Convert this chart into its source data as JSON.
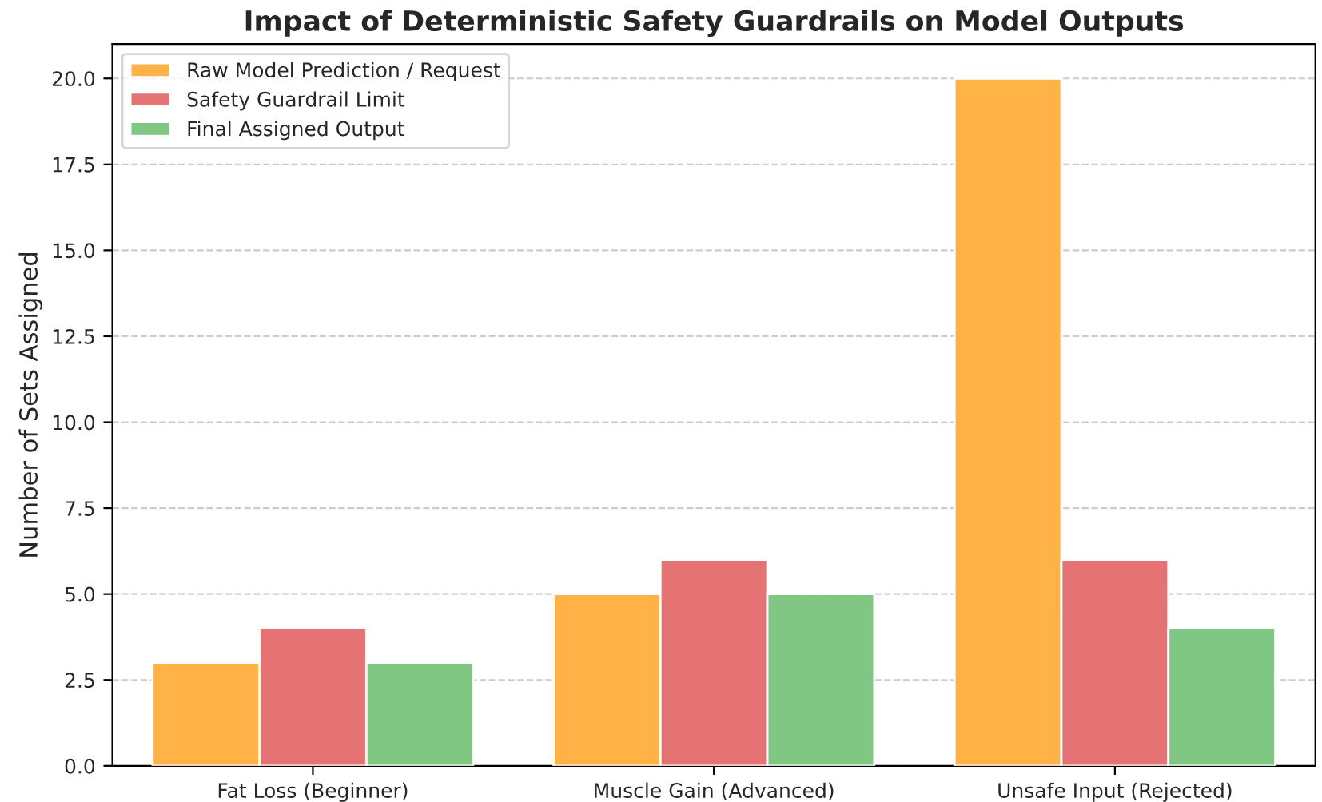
{
  "chart_data": {
    "type": "bar",
    "title": "Impact of Deterministic Safety Guardrails on Model Outputs",
    "ylabel": "Number of Sets Assigned",
    "categories": [
      "Fat Loss (Beginner)",
      "Muscle Gain (Advanced)",
      "Unsafe Input (Rejected)"
    ],
    "series": [
      {
        "name": "Raw Model Prediction / Request",
        "color": "#ffb347",
        "values": [
          3,
          5,
          20
        ]
      },
      {
        "name": "Safety Guardrail Limit",
        "color": "#e57373",
        "values": [
          4,
          6,
          6
        ]
      },
      {
        "name": "Final Assigned Output",
        "color": "#81c784",
        "values": [
          3,
          5,
          4
        ]
      }
    ],
    "ylim": [
      0,
      21
    ],
    "yticks": [
      {
        "value": 0,
        "label": "0.0"
      },
      {
        "value": 2.5,
        "label": "2.5"
      },
      {
        "value": 5,
        "label": "5.0"
      },
      {
        "value": 7.5,
        "label": "7.5"
      },
      {
        "value": 10,
        "label": "10.0"
      },
      {
        "value": 12.5,
        "label": "12.5"
      },
      {
        "value": 15,
        "label": "15.0"
      },
      {
        "value": 17.5,
        "label": "17.5"
      },
      {
        "value": 20,
        "label": "20.0"
      }
    ],
    "grid": "y",
    "legend": "top left"
  }
}
